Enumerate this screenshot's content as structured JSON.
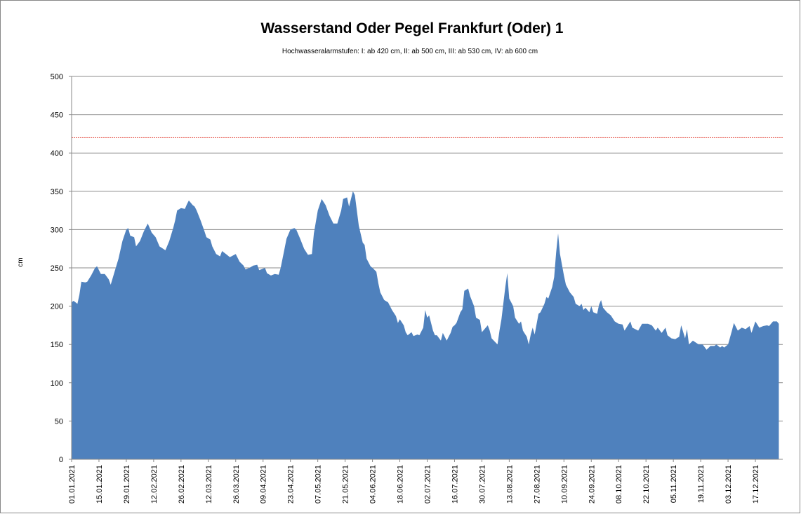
{
  "chart_data": {
    "type": "area",
    "title": "Wasserstand Oder Pegel Frankfurt (Oder) 1",
    "subtitle": "Hochwasseralarmstufen: I: ab 420 cm, II: ab 500 cm, III: ab 530 cm,  IV: ab 600 cm",
    "y_label": "cm",
    "color": "#4f81bd",
    "grid": true,
    "reference_line": {
      "value": 420,
      "color": "#e0342a"
    },
    "ylim": [
      0,
      500
    ],
    "yticks": [
      0,
      50,
      100,
      150,
      200,
      250,
      300,
      350,
      400,
      450,
      500
    ],
    "xlim": [
      "01.01.2021",
      "31.12.2021"
    ],
    "xticks": [
      "01.01.2021",
      "15.01.2021",
      "29.01.2021",
      "12.02.2021",
      "26.02.2021",
      "12.03.2021",
      "26.03.2021",
      "09.04.2021",
      "23.04.2021",
      "07.05.2021",
      "21.05.2021",
      "04.06.2021",
      "18.06.2021",
      "02.07.2021",
      "16.07.2021",
      "30.07.2021",
      "13.08.2021",
      "27.08.2021",
      "10.09.2021",
      "24.09.2021",
      "08.10.2021",
      "22.10.2021",
      "05.11.2021",
      "19.11.2021",
      "03.12.2021",
      "17.12.2021"
    ],
    "x": [
      "01.01.2021",
      "02.01.2021",
      "04.01.2021",
      "05.01.2021",
      "06.01.2021",
      "08.01.2021",
      "09.01.2021",
      "11.01.2021",
      "13.01.2021",
      "14.01.2021",
      "16.01.2021",
      "18.01.2021",
      "20.01.2021",
      "21.01.2021",
      "23.01.2021",
      "25.01.2021",
      "27.01.2021",
      "29.01.2021",
      "30.01.2021",
      "31.01.2021",
      "02.02.2021",
      "03.02.2021",
      "05.02.2021",
      "07.02.2021",
      "09.02.2021",
      "11.02.2021",
      "13.02.2021",
      "15.02.2021",
      "18.02.2021",
      "20.02.2021",
      "22.02.2021",
      "23.02.2021",
      "24.02.2021",
      "26.02.2021",
      "28.02.2021",
      "01.03.2021",
      "02.03.2021",
      "04.03.2021",
      "05.03.2021",
      "06.03.2021",
      "08.03.2021",
      "10.03.2021",
      "11.03.2021",
      "13.03.2021",
      "14.03.2021",
      "16.03.2021",
      "18.03.2021",
      "19.03.2021",
      "21.03.2021",
      "23.03.2021",
      "26.03.2021",
      "28.03.2021",
      "30.03.2021",
      "31.03.2021",
      "02.04.2021",
      "04.04.2021",
      "06.04.2021",
      "07.04.2021",
      "10.04.2021",
      "11.04.2021",
      "13.04.2021",
      "15.04.2021",
      "17.04.2021",
      "18.04.2021",
      "20.04.2021",
      "21.04.2021",
      "23.04.2021",
      "25.04.2021",
      "26.04.2021",
      "28.04.2021",
      "30.04.2021",
      "02.05.2021",
      "04.05.2021",
      "05.05.2021",
      "07.05.2021",
      "09.05.2021",
      "11.05.2021",
      "13.05.2021",
      "15.05.2021",
      "17.05.2021",
      "19.05.2021",
      "20.05.2021",
      "22.05.2021",
      "23.05.2021",
      "25.05.2021",
      "26.05.2021",
      "27.05.2021",
      "28.05.2021",
      "30.05.2021",
      "31.05.2021",
      "01.06.2021",
      "03.06.2021",
      "04.06.2021",
      "06.06.2021",
      "07.06.2021",
      "08.06.2021",
      "10.06.2021",
      "12.06.2021",
      "14.06.2021",
      "16.06.2021",
      "17.06.2021",
      "18.06.2021",
      "20.06.2021",
      "21.06.2021",
      "22.06.2021",
      "24.06.2021",
      "25.06.2021",
      "27.06.2021",
      "28.06.2021",
      "30.06.2021",
      "01.07.2021",
      "02.07.2021",
      "03.07.2021",
      "05.07.2021",
      "06.07.2021",
      "07.07.2021",
      "09.07.2021",
      "10.07.2021",
      "12.07.2021",
      "14.07.2021",
      "15.07.2021",
      "16.07.2021",
      "17.07.2021",
      "19.07.2021",
      "20.07.2021",
      "21.07.2021",
      "23.07.2021",
      "24.07.2021",
      "26.07.2021",
      "27.07.2021",
      "29.07.2021",
      "30.07.2021",
      "02.08.2021",
      "03.08.2021",
      "04.08.2021",
      "07.08.2021",
      "08.08.2021",
      "09.08.2021",
      "11.08.2021",
      "12.08.2021",
      "13.08.2021",
      "15.08.2021",
      "16.08.2021",
      "18.08.2021",
      "19.08.2021",
      "20.08.2021",
      "22.08.2021",
      "23.08.2021",
      "24.08.2021",
      "25.08.2021",
      "26.08.2021",
      "28.08.2021",
      "29.08.2021",
      "31.08.2021",
      "01.09.2021",
      "02.09.2021",
      "04.09.2021",
      "05.09.2021",
      "06.09.2021",
      "07.09.2021",
      "08.09.2021",
      "10.09.2021",
      "11.09.2021",
      "13.09.2021",
      "15.09.2021",
      "16.09.2021",
      "18.09.2021",
      "19.09.2021",
      "20.09.2021",
      "21.09.2021",
      "23.09.2021",
      "24.09.2021",
      "25.09.2021",
      "27.09.2021",
      "28.09.2021",
      "29.09.2021",
      "30.09.2021",
      "02.10.2021",
      "04.10.2021",
      "06.10.2021",
      "08.10.2021",
      "10.10.2021",
      "11.10.2021",
      "14.10.2021",
      "15.10.2021",
      "18.10.2021",
      "20.10.2021",
      "23.10.2021",
      "25.10.2021",
      "27.10.2021",
      "28.10.2021",
      "30.10.2021",
      "01.11.2021",
      "02.11.2021",
      "04.11.2021",
      "06.11.2021",
      "08.11.2021",
      "09.11.2021",
      "11.11.2021",
      "12.11.2021",
      "13.11.2021",
      "15.11.2021",
      "18.11.2021",
      "20.11.2021",
      "22.11.2021",
      "24.11.2021",
      "26.11.2021",
      "27.11.2021",
      "29.11.2021",
      "30.11.2021",
      "01.12.2021",
      "03.12.2021",
      "05.12.2021",
      "06.12.2021",
      "08.12.2021",
      "10.12.2021",
      "12.12.2021",
      "14.12.2021",
      "15.12.2021",
      "17.12.2021",
      "19.12.2021",
      "21.12.2021",
      "23.12.2021",
      "24.12.2021",
      "26.12.2021",
      "28.12.2021",
      "29.12.2021"
    ],
    "values": [
      205,
      207,
      203,
      215,
      232,
      231,
      232,
      240,
      250,
      252,
      242,
      242,
      235,
      228,
      245,
      262,
      285,
      300,
      302,
      292,
      290,
      278,
      285,
      298,
      308,
      296,
      290,
      278,
      273,
      285,
      302,
      312,
      325,
      328,
      327,
      333,
      338,
      332,
      330,
      325,
      312,
      298,
      290,
      287,
      278,
      268,
      265,
      272,
      268,
      264,
      268,
      258,
      253,
      248,
      250,
      253,
      254,
      247,
      250,
      243,
      240,
      242,
      241,
      250,
      275,
      288,
      300,
      302,
      300,
      288,
      275,
      267,
      268,
      295,
      325,
      340,
      332,
      318,
      308,
      308,
      325,
      340,
      342,
      330,
      350,
      345,
      325,
      305,
      283,
      280,
      262,
      252,
      250,
      245,
      230,
      218,
      208,
      205,
      195,
      187,
      178,
      183,
      175,
      166,
      162,
      166,
      161,
      163,
      162,
      172,
      195,
      185,
      188,
      168,
      162,
      162,
      155,
      165,
      155,
      165,
      173,
      175,
      178,
      192,
      196,
      220,
      223,
      213,
      200,
      185,
      182,
      166,
      175,
      168,
      158,
      150,
      168,
      183,
      225,
      243,
      210,
      200,
      185,
      177,
      180,
      168,
      160,
      150,
      163,
      172,
      163,
      190,
      192,
      203,
      212,
      210,
      225,
      238,
      270,
      295,
      268,
      240,
      228,
      218,
      212,
      203,
      200,
      203,
      195,
      198,
      192,
      200,
      192,
      190,
      202,
      208,
      198,
      192,
      188,
      180,
      177,
      176,
      168,
      180,
      172,
      168,
      177,
      177,
      175,
      168,
      172,
      165,
      172,
      162,
      158,
      157,
      160,
      175,
      158,
      170,
      150,
      155,
      150,
      150,
      143,
      148,
      148,
      150,
      146,
      148,
      146,
      150,
      168,
      178,
      168,
      172,
      170,
      174,
      165,
      180,
      172,
      174,
      175,
      174,
      180,
      180,
      177
    ]
  }
}
